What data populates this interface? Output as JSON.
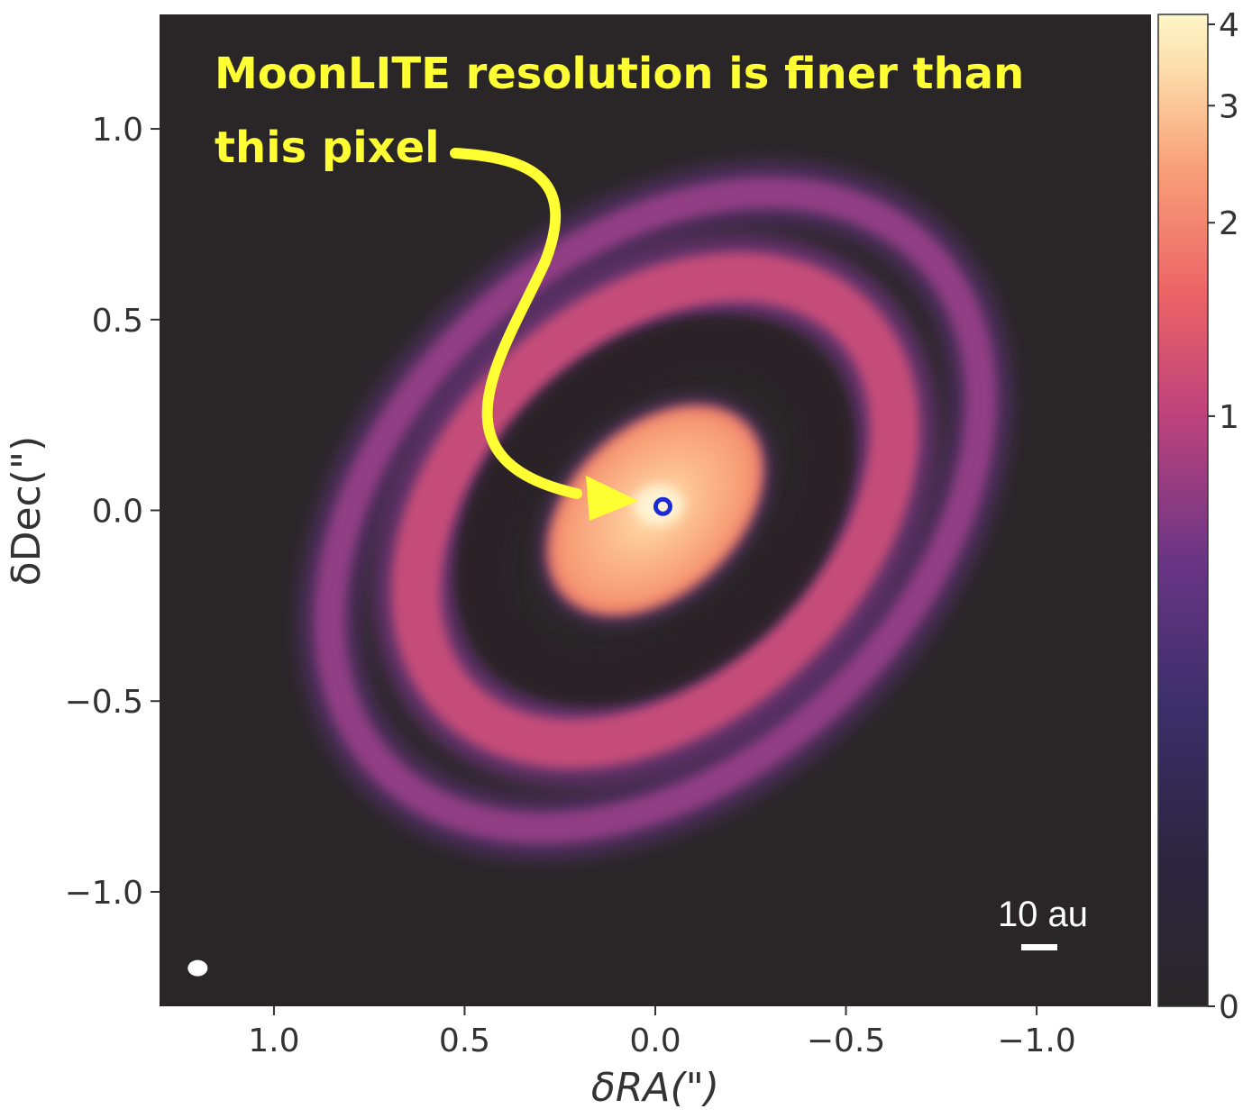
{
  "chart_data": {
    "type": "heatmap",
    "title": "",
    "xlabel": "δRA(\")",
    "ylabel": "δDec(\")",
    "xlim": [
      1.3,
      -1.3
    ],
    "ylim": [
      -1.3,
      1.3
    ],
    "x_ticks": [
      1.0,
      0.5,
      0.0,
      -0.5,
      -1.0
    ],
    "x_tick_labels": [
      "1.0",
      "0.5",
      "0.0",
      "−0.5",
      "−1.0"
    ],
    "y_ticks": [
      1.0,
      0.5,
      0.0,
      -0.5,
      -1.0
    ],
    "y_tick_labels": [
      "1.0",
      "0.5",
      "0.0",
      "−0.5",
      "−1.0"
    ],
    "colormap": "magma",
    "colorbar": {
      "ticks": [
        0,
        1,
        2,
        3,
        4
      ],
      "tick_labels": [
        "0",
        "1",
        "2",
        "3",
        "4"
      ],
      "scale": "stretched (power-law)"
    },
    "structures": [
      {
        "name": "inner disk",
        "semi_major": 0.33,
        "semi_minor": 0.22,
        "position_angle_deg": 43,
        "level": 3.0
      },
      {
        "name": "dark gap",
        "semi_major": 0.52,
        "semi_minor": 0.36,
        "position_angle_deg": 43,
        "level": 0.05
      },
      {
        "name": "middle ring",
        "semi_major": 0.72,
        "semi_minor": 0.5,
        "position_angle_deg": 43,
        "level": 1.3
      },
      {
        "name": "outer ring",
        "semi_major": 0.98,
        "semi_minor": 0.68,
        "position_angle_deg": 43,
        "level": 0.7
      }
    ],
    "center_marker": {
      "x": -0.02,
      "y": 0.01,
      "color": "#1a2ad8"
    },
    "annotation": {
      "line1": "MoonLITE resolution is finer than",
      "line2": "this pixel",
      "color": "#ffff33"
    },
    "scale_bar": {
      "label": "10 au"
    },
    "beam": {
      "x": 1.2,
      "y": -1.2
    }
  }
}
